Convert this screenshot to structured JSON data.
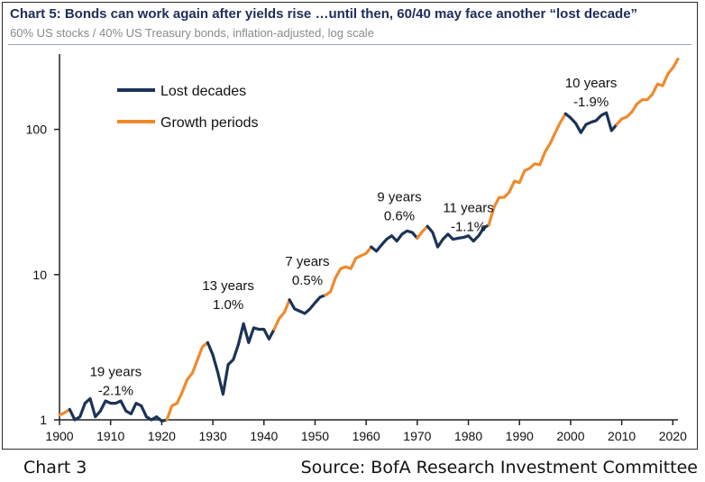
{
  "header": {
    "title": "Chart 5: Bonds can work again after yields rise …until then, 60/40 may face another “lost decade”",
    "subtitle": "60% US stocks / 40% US Treasury bonds, inflation-adjusted, log scale"
  },
  "footer": {
    "left": "Chart 3",
    "right": "Source: BofA Research Investment Committee"
  },
  "chart_data": {
    "type": "line",
    "title": "",
    "xlabel": "",
    "ylabel": "",
    "yscale": "log",
    "xlim": [
      1900,
      2021
    ],
    "ylim": [
      1,
      330
    ],
    "x_ticks": [
      "1900",
      "1910",
      "1920",
      "1930",
      "1940",
      "1950",
      "1960",
      "1970",
      "1980",
      "1990",
      "2000",
      "2010",
      "2020"
    ],
    "y_ticks": [
      "1",
      "10",
      "100"
    ],
    "grid": false,
    "legend_position": "top-left",
    "colors": {
      "lost": "#1b3357",
      "growth": "#ef8a2e"
    },
    "legend": [
      {
        "label": "Lost decades",
        "color_key": "lost"
      },
      {
        "label": "Growth periods",
        "color_key": "growth"
      }
    ],
    "series": [
      {
        "name": "Growth periods",
        "color_key": "growth",
        "points": [
          [
            1900,
            1.08
          ],
          [
            1901,
            1.12
          ],
          [
            1902,
            1.18
          ]
        ]
      },
      {
        "name": "Lost decades",
        "color_key": "lost",
        "points": [
          [
            1902,
            1.18
          ],
          [
            1903,
            1.0
          ],
          [
            1904,
            1.05
          ],
          [
            1905,
            1.3
          ],
          [
            1906,
            1.4
          ],
          [
            1907,
            1.05
          ],
          [
            1908,
            1.15
          ],
          [
            1909,
            1.35
          ],
          [
            1910,
            1.3
          ],
          [
            1911,
            1.3
          ],
          [
            1912,
            1.35
          ],
          [
            1913,
            1.15
          ],
          [
            1914,
            1.1
          ],
          [
            1915,
            1.3
          ],
          [
            1916,
            1.25
          ],
          [
            1917,
            1.05
          ],
          [
            1918,
            1.0
          ],
          [
            1919,
            1.05
          ],
          [
            1920,
            0.98
          ],
          [
            1921,
            1.0
          ]
        ]
      },
      {
        "name": "Growth periods",
        "color_key": "growth",
        "points": [
          [
            1921,
            1.0
          ],
          [
            1922,
            1.25
          ],
          [
            1923,
            1.3
          ],
          [
            1924,
            1.55
          ],
          [
            1925,
            1.9
          ],
          [
            1926,
            2.1
          ],
          [
            1927,
            2.6
          ],
          [
            1928,
            3.2
          ],
          [
            1929,
            3.4
          ]
        ]
      },
      {
        "name": "Lost decades",
        "color_key": "lost",
        "points": [
          [
            1929,
            3.4
          ],
          [
            1930,
            2.8
          ],
          [
            1931,
            2.1
          ],
          [
            1932,
            1.5
          ],
          [
            1933,
            2.4
          ],
          [
            1934,
            2.6
          ],
          [
            1935,
            3.3
          ],
          [
            1936,
            4.6
          ],
          [
            1937,
            3.4
          ],
          [
            1938,
            4.3
          ],
          [
            1939,
            4.2
          ],
          [
            1940,
            4.2
          ],
          [
            1941,
            3.6
          ],
          [
            1942,
            4.2
          ]
        ]
      },
      {
        "name": "Growth periods",
        "color_key": "growth",
        "points": [
          [
            1942,
            4.2
          ],
          [
            1943,
            5.0
          ],
          [
            1944,
            5.5
          ],
          [
            1945,
            6.7
          ]
        ]
      },
      {
        "name": "Lost decades",
        "color_key": "lost",
        "points": [
          [
            1945,
            6.7
          ],
          [
            1946,
            5.8
          ],
          [
            1947,
            5.6
          ],
          [
            1948,
            5.4
          ],
          [
            1949,
            5.8
          ],
          [
            1950,
            6.4
          ],
          [
            1951,
            7.0
          ],
          [
            1952,
            7.2
          ]
        ]
      },
      {
        "name": "Growth periods",
        "color_key": "growth",
        "points": [
          [
            1952,
            7.2
          ],
          [
            1953,
            7.6
          ],
          [
            1954,
            9.5
          ],
          [
            1955,
            11.0
          ],
          [
            1956,
            11.3
          ],
          [
            1957,
            11.0
          ],
          [
            1958,
            13.0
          ],
          [
            1959,
            13.5
          ],
          [
            1960,
            14.0
          ],
          [
            1961,
            15.5
          ]
        ]
      },
      {
        "name": "Lost decades",
        "color_key": "lost",
        "points": [
          [
            1961,
            15.5
          ],
          [
            1962,
            14.5
          ],
          [
            1963,
            16.0
          ],
          [
            1964,
            17.5
          ],
          [
            1965,
            18.5
          ],
          [
            1966,
            17.0
          ],
          [
            1967,
            19.0
          ],
          [
            1968,
            20.0
          ],
          [
            1969,
            19.5
          ],
          [
            1970,
            17.8
          ]
        ]
      },
      {
        "name": "Growth periods",
        "color_key": "growth",
        "points": [
          [
            1970,
            17.8
          ],
          [
            1971,
            19.8
          ],
          [
            1972,
            21.5
          ]
        ]
      },
      {
        "name": "Lost decades",
        "color_key": "lost",
        "points": [
          [
            1972,
            21.5
          ],
          [
            1973,
            19.5
          ],
          [
            1974,
            15.5
          ],
          [
            1975,
            17.5
          ],
          [
            1976,
            19.0
          ],
          [
            1977,
            17.5
          ],
          [
            1978,
            17.8
          ],
          [
            1979,
            18.0
          ],
          [
            1980,
            18.5
          ],
          [
            1981,
            17.0
          ],
          [
            1982,
            18.5
          ],
          [
            1983,
            21.0
          ],
          [
            1984,
            22.0
          ]
        ]
      },
      {
        "name": "Growth periods",
        "color_key": "growth",
        "points": [
          [
            1984,
            22.0
          ],
          [
            1985,
            29.0
          ],
          [
            1986,
            34.0
          ],
          [
            1987,
            34.0
          ],
          [
            1988,
            37.0
          ],
          [
            1989,
            44.0
          ],
          [
            1990,
            43.0
          ],
          [
            1991,
            52.0
          ],
          [
            1992,
            54.0
          ],
          [
            1993,
            58.0
          ],
          [
            1994,
            57.0
          ],
          [
            1995,
            70.0
          ],
          [
            1996,
            80.0
          ],
          [
            1997,
            95.0
          ],
          [
            1998,
            112.0
          ],
          [
            1999,
            128.0
          ]
        ]
      },
      {
        "name": "Lost decades",
        "color_key": "lost",
        "points": [
          [
            1999,
            128.0
          ],
          [
            2000,
            120.0
          ],
          [
            2001,
            110.0
          ],
          [
            2002,
            95.0
          ],
          [
            2003,
            108.0
          ],
          [
            2004,
            112.0
          ],
          [
            2005,
            115.0
          ],
          [
            2006,
            125.0
          ],
          [
            2007,
            130.0
          ],
          [
            2008,
            98.0
          ],
          [
            2009,
            108.0
          ]
        ]
      },
      {
        "name": "Growth periods",
        "color_key": "growth",
        "points": [
          [
            2009,
            108.0
          ],
          [
            2010,
            118.0
          ],
          [
            2011,
            122.0
          ],
          [
            2012,
            132.0
          ],
          [
            2013,
            150.0
          ],
          [
            2014,
            160.0
          ],
          [
            2015,
            160.0
          ],
          [
            2016,
            175.0
          ],
          [
            2017,
            205.0
          ],
          [
            2018,
            200.0
          ],
          [
            2019,
            240.0
          ],
          [
            2020,
            265.0
          ],
          [
            2021,
            305.0
          ]
        ]
      }
    ],
    "annotations": [
      {
        "line1": "19 years",
        "line2": "-2.1%",
        "x": 1911,
        "y": 2.0
      },
      {
        "line1": "13 years",
        "line2": "1.0%",
        "x": 1933,
        "y": 7.8
      },
      {
        "line1": "7 years",
        "line2": "0.5%",
        "x": 1948.5,
        "y": 11.5
      },
      {
        "line1": "9 years",
        "line2": "0.6%",
        "x": 1966.5,
        "y": 32.0
      },
      {
        "line1": "11 years",
        "line2": "-1.1%",
        "x": 1980,
        "y": 27.0
      },
      {
        "line1": "10 years",
        "line2": "-1.9%",
        "x": 2004,
        "y": 195.0
      }
    ]
  }
}
